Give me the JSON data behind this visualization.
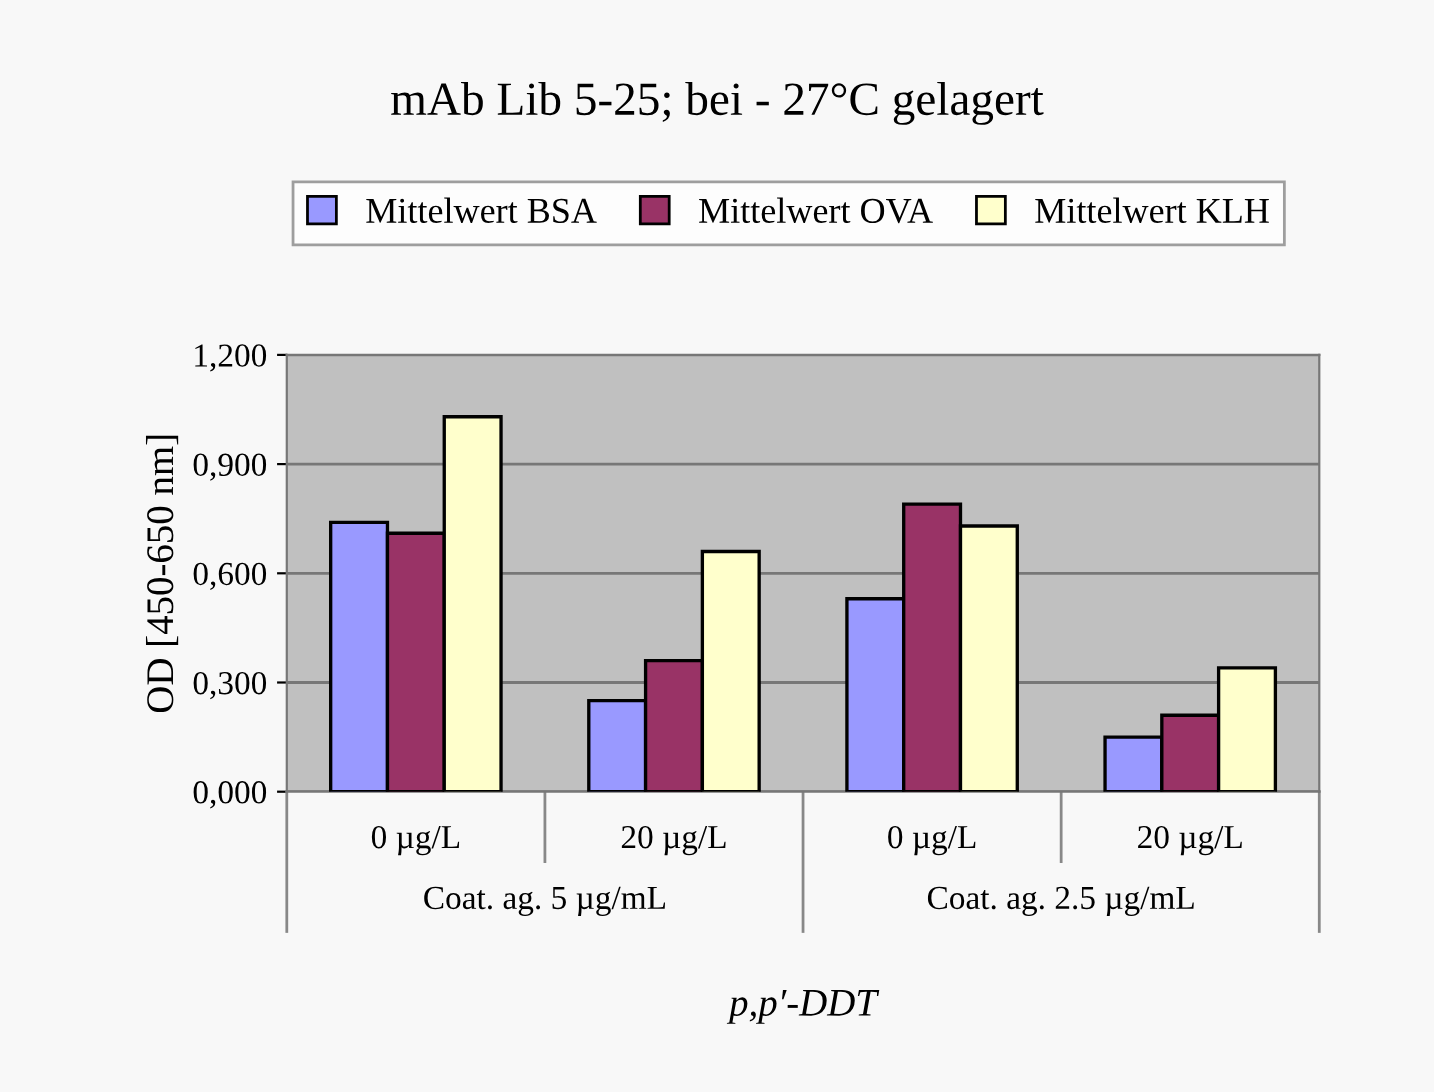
{
  "chart_data": {
    "type": "bar",
    "title": "mAb Lib 5-25; bei - 27°C gelagert",
    "ylabel": "OD [450-650 nm]",
    "xlabel": "p,p′-DDT",
    "categories": [
      "0 µg/L",
      "20 µg/L",
      "0 µg/L",
      "20 µg/L"
    ],
    "annotations": [
      "Coat. ag. 5 µg/mL",
      "Coat. ag. 2.5 µg/mL"
    ],
    "series": [
      {
        "name": "Mittelwert BSA",
        "color": "#9999ff",
        "values": [
          0.74,
          0.25,
          0.53,
          0.15
        ]
      },
      {
        "name": "Mittelwert OVA",
        "color": "#993366",
        "values": [
          0.71,
          0.36,
          0.79,
          0.21
        ]
      },
      {
        "name": "Mittelwert KLH",
        "color": "#ffffcc",
        "values": [
          1.03,
          0.66,
          0.73,
          0.34
        ]
      }
    ],
    "ylim": [
      0,
      1.2
    ],
    "yticks": [
      {
        "value": 0,
        "label": "0,000"
      },
      {
        "value": 0.3,
        "label": "0,300"
      },
      {
        "value": 0.6,
        "label": "0,600"
      },
      {
        "value": 0.9,
        "label": "0,900"
      },
      {
        "value": 1.2,
        "label": "1,200"
      }
    ],
    "grid": "y",
    "legend": "top"
  }
}
